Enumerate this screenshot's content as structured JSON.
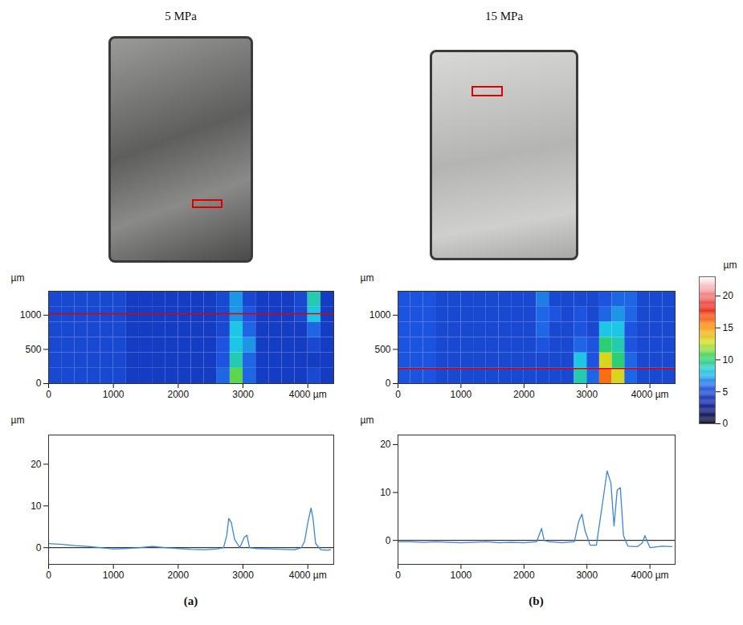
{
  "photos": [
    {
      "title": "5 MPa"
    },
    {
      "title": "15 MPa"
    }
  ],
  "panel_labels": [
    "(a)",
    "(b)"
  ],
  "colorbar": {
    "label": "µm",
    "range": [
      0,
      23
    ],
    "ticks": [
      0,
      5,
      10,
      15,
      20
    ]
  },
  "chart_data": [
    {
      "type": "heatmap",
      "ylabel": "µm",
      "xlim": [
        0,
        4400
      ],
      "ylim": [
        0,
        1350
      ],
      "xticks": [
        0,
        1000,
        2000,
        3000,
        {
          "value": 4000,
          "label": "4000 µm"
        }
      ],
      "yticks": [
        0,
        500,
        1000
      ],
      "x": [
        100,
        300,
        500,
        700,
        900,
        1100,
        1300,
        1500,
        1700,
        1900,
        2100,
        2300,
        2500,
        2700,
        2900,
        3100,
        3300,
        3500,
        3700,
        3900,
        4100,
        4300
      ],
      "y": [
        112.5,
        337.5,
        562.5,
        787.5,
        1012.5,
        1237.5
      ],
      "cells": [
        [
          5,
          5,
          5,
          5,
          5,
          5,
          4.5,
          4.5,
          4.5,
          4.5,
          4.5,
          4.5,
          4.5,
          6,
          11,
          6,
          4.5,
          4.5,
          4.5,
          4.5,
          5,
          4.5
        ],
        [
          5,
          5,
          5,
          5,
          5,
          5,
          4.5,
          4.5,
          4.5,
          4.5,
          4.5,
          4.5,
          4.5,
          5.5,
          9,
          6,
          4.5,
          4.5,
          4.5,
          4.5,
          4.5,
          4.5
        ],
        [
          5,
          5,
          5,
          5,
          5,
          5,
          4.5,
          4.5,
          4.5,
          4.5,
          4.5,
          4.5,
          4.5,
          5.5,
          8,
          7,
          4.5,
          4.5,
          4.5,
          4.5,
          5,
          4.5
        ],
        [
          5,
          5,
          5,
          5,
          5,
          5,
          4.5,
          4.5,
          4.5,
          4.5,
          4.5,
          4.5,
          4.5,
          5,
          8,
          6,
          4.5,
          4.5,
          4.5,
          4.5,
          6,
          4.5
        ],
        [
          5,
          5,
          5,
          5,
          5,
          5,
          4.5,
          4.5,
          4.5,
          4.5,
          4.5,
          4.5,
          4.5,
          5,
          7,
          5.5,
          4.5,
          4.5,
          4.5,
          5,
          8,
          4.5
        ],
        [
          5,
          5,
          5,
          5,
          5,
          5,
          4.5,
          4.5,
          4.5,
          4.5,
          4.5,
          4.5,
          4.5,
          5,
          7,
          5,
          4.5,
          4.5,
          4.5,
          5,
          9,
          4.5
        ]
      ],
      "profile_y": 1020
    },
    {
      "type": "heatmap",
      "ylabel": "µm",
      "xlim": [
        0,
        4400
      ],
      "ylim": [
        0,
        1350
      ],
      "xticks": [
        0,
        1000,
        2000,
        3000,
        {
          "value": 4000,
          "label": "4000 µm"
        }
      ],
      "yticks": [
        0,
        500,
        1000
      ],
      "x": [
        100,
        300,
        500,
        700,
        900,
        1100,
        1300,
        1500,
        1700,
        1900,
        2100,
        2300,
        2500,
        2700,
        2900,
        3100,
        3300,
        3500,
        3700,
        3900,
        4100,
        4300
      ],
      "y": [
        112.5,
        337.5,
        562.5,
        787.5,
        1012.5,
        1237.5
      ],
      "cells": [
        [
          5.5,
          5.5,
          5.5,
          5,
          5,
          5,
          5,
          5,
          5,
          5,
          5,
          5,
          5,
          5,
          9,
          6,
          16,
          13,
          6,
          5,
          5,
          5
        ],
        [
          5.5,
          5.5,
          5.5,
          5,
          5,
          5,
          5,
          5,
          5,
          5,
          5,
          5,
          5,
          5,
          8,
          5.5,
          13,
          10,
          6,
          5,
          5,
          5
        ],
        [
          5.5,
          5.5,
          5.5,
          5,
          5,
          5,
          5,
          5,
          5,
          5,
          5,
          5.5,
          5,
          5,
          6,
          5.5,
          10,
          9,
          5.5,
          5,
          5,
          5
        ],
        [
          5.5,
          5.5,
          5.5,
          5,
          5,
          5,
          5,
          5,
          5,
          5,
          5,
          6,
          5,
          5,
          5.5,
          5,
          8,
          8,
          5.5,
          5,
          5,
          5
        ],
        [
          5.5,
          5.5,
          5.5,
          5,
          5,
          5,
          5,
          5,
          5,
          5,
          5,
          6,
          5.5,
          5,
          5.5,
          5,
          6,
          7,
          6,
          5,
          5,
          5
        ],
        [
          5.5,
          5.5,
          5.5,
          5,
          5,
          5,
          5,
          5,
          5,
          5,
          5,
          6.5,
          5,
          5,
          5,
          5,
          5.5,
          6,
          6,
          5,
          5,
          5
        ]
      ],
      "profile_y": 220
    },
    {
      "type": "line",
      "ylabel": "µm",
      "color": "#3a86d8",
      "baseline": 0,
      "xlim": [
        0,
        4400
      ],
      "ylim": [
        -4,
        27
      ],
      "xticks": [
        0,
        1000,
        2000,
        3000,
        {
          "value": 4000,
          "label": "4000 µm"
        }
      ],
      "yticks": [
        0,
        10,
        20
      ],
      "x": [
        0,
        200,
        400,
        600,
        800,
        1000,
        1200,
        1400,
        1600,
        1800,
        2000,
        2200,
        2400,
        2600,
        2700,
        2750,
        2780,
        2820,
        2870,
        2950,
        3020,
        3060,
        3100,
        3200,
        3400,
        3600,
        3800,
        3900,
        3950,
        4000,
        4050,
        4080,
        4120,
        4200,
        4300,
        4350
      ],
      "values": [
        1,
        0.8,
        0.5,
        0.3,
        0,
        -0.3,
        -0.2,
        0,
        0.3,
        0,
        -0.2,
        -0.4,
        -0.5,
        -0.3,
        0,
        3,
        7,
        6,
        2,
        0,
        2.5,
        3,
        0,
        -0.2,
        -0.3,
        -0.4,
        -0.5,
        0,
        1.5,
        6,
        9.5,
        7,
        1,
        -0.5,
        -0.6,
        -0.5
      ]
    },
    {
      "type": "line",
      "ylabel": "µm",
      "color": "#3a86d8",
      "baseline": 0,
      "xlim": [
        0,
        4400
      ],
      "ylim": [
        -5,
        22
      ],
      "xticks": [
        0,
        1000,
        2000,
        3000,
        {
          "value": 4000,
          "label": "4000 µm"
        }
      ],
      "yticks": [
        0,
        10,
        20
      ],
      "x": [
        0,
        200,
        400,
        600,
        800,
        1000,
        1200,
        1400,
        1600,
        1800,
        2000,
        2200,
        2280,
        2320,
        2400,
        2600,
        2800,
        2870,
        2920,
        2970,
        3050,
        3150,
        3250,
        3320,
        3380,
        3430,
        3480,
        3530,
        3580,
        3650,
        3800,
        3880,
        3920,
        4000,
        4200,
        4350
      ],
      "values": [
        -0.3,
        -0.3,
        -0.4,
        -0.3,
        -0.4,
        -0.5,
        -0.4,
        -0.3,
        -0.5,
        -0.4,
        -0.5,
        -0.3,
        2.5,
        0,
        -0.3,
        -0.5,
        -0.3,
        4,
        5.5,
        2,
        -1,
        -1,
        8,
        14.5,
        12,
        3,
        10.5,
        11,
        1,
        -1.2,
        -1.3,
        -0.5,
        1,
        -1.5,
        -1.2,
        -1.3
      ]
    }
  ]
}
